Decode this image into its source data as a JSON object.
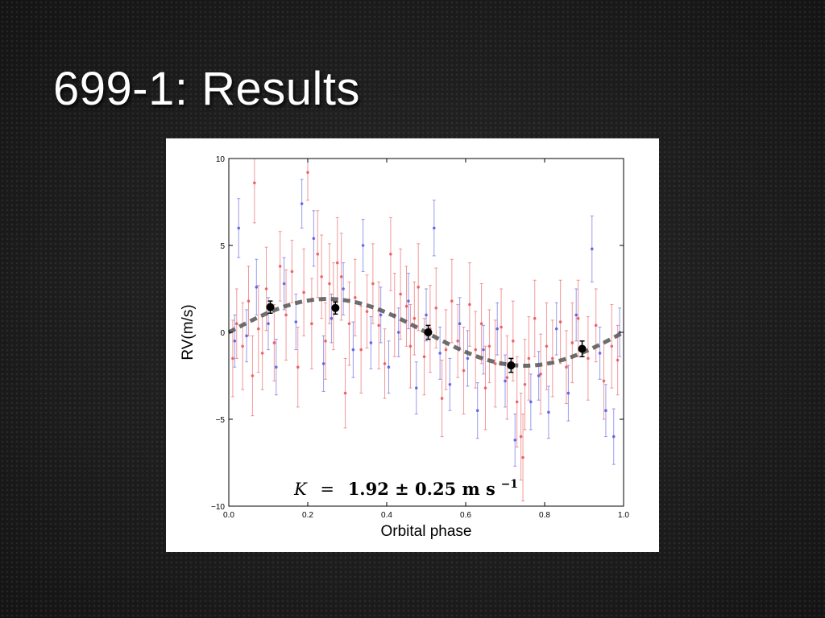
{
  "slide": {
    "title": "699-1: Results"
  },
  "chart_data": {
    "type": "scatter",
    "title": "",
    "xlabel": "Orbital phase",
    "ylabel": "RV(m/s)",
    "xlim": [
      0.0,
      1.0
    ],
    "ylim": [
      -10,
      10
    ],
    "x_ticks": [
      "0.0",
      "0.2",
      "0.4",
      "0.6",
      "0.8",
      "1.0"
    ],
    "x_tick_values": [
      0.0,
      0.2,
      0.4,
      0.6,
      0.8,
      1.0
    ],
    "y_ticks": [
      "10",
      "5",
      "0",
      "−5",
      "−10"
    ],
    "y_tick_values": [
      10,
      5,
      0,
      -5,
      -10
    ],
    "grid": false,
    "annotation": {
      "text_var": "K",
      "text_eq": "=",
      "text_value": "1.92 ± 0.25 m s",
      "text_sup": "−1"
    },
    "colors": {
      "red_series": "#e8484d",
      "blue_series": "#4a4de0",
      "binned": "#000000",
      "model": "#555555"
    },
    "model_curve": {
      "style": "dashed",
      "semi_amplitude": 1.92,
      "phase_of_max": 0.25
    },
    "binned": [
      {
        "x": 0.105,
        "y": 1.45,
        "err": 0.35
      },
      {
        "x": 0.27,
        "y": 1.4,
        "err": 0.35
      },
      {
        "x": 0.505,
        "y": 0.0,
        "err": 0.4
      },
      {
        "x": 0.715,
        "y": -1.9,
        "err": 0.4
      },
      {
        "x": 0.895,
        "y": -0.95,
        "err": 0.45
      }
    ],
    "series": [
      {
        "color": "red",
        "points": [
          {
            "x": 0.01,
            "y": -1.5,
            "err": 2.2
          },
          {
            "x": 0.02,
            "y": 0.5,
            "err": 2.0
          },
          {
            "x": 0.035,
            "y": -0.8,
            "err": 2.5
          },
          {
            "x": 0.05,
            "y": 1.8,
            "err": 2.0
          },
          {
            "x": 0.06,
            "y": -2.5,
            "err": 2.3
          },
          {
            "x": 0.065,
            "y": 8.6,
            "err": 2.3
          },
          {
            "x": 0.075,
            "y": 0.2,
            "err": 2.5
          },
          {
            "x": 0.085,
            "y": -1.2,
            "err": 2.1
          },
          {
            "x": 0.095,
            "y": 2.5,
            "err": 2.4
          },
          {
            "x": 0.115,
            "y": -0.6,
            "err": 2.2
          },
          {
            "x": 0.13,
            "y": 3.8,
            "err": 2.0
          },
          {
            "x": 0.145,
            "y": 1.0,
            "err": 2.6
          },
          {
            "x": 0.16,
            "y": 3.5,
            "err": 1.8
          },
          {
            "x": 0.175,
            "y": -2.0,
            "err": 2.3
          },
          {
            "x": 0.19,
            "y": 2.3,
            "err": 2.5
          },
          {
            "x": 0.2,
            "y": 9.2,
            "err": 1.6
          },
          {
            "x": 0.21,
            "y": 0.5,
            "err": 2.6
          },
          {
            "x": 0.225,
            "y": 4.5,
            "err": 2.5
          },
          {
            "x": 0.235,
            "y": 3.2,
            "err": 2.4
          },
          {
            "x": 0.245,
            "y": -0.5,
            "err": 2.2
          },
          {
            "x": 0.255,
            "y": 2.8,
            "err": 2.3
          },
          {
            "x": 0.265,
            "y": 1.5,
            "err": 2.5
          },
          {
            "x": 0.275,
            "y": 4.0,
            "err": 2.6
          },
          {
            "x": 0.285,
            "y": 3.2,
            "err": 2.5
          },
          {
            "x": 0.295,
            "y": -3.5,
            "err": 2.0
          },
          {
            "x": 0.305,
            "y": 0.5,
            "err": 2.4
          },
          {
            "x": 0.32,
            "y": 2.0,
            "err": 2.2
          },
          {
            "x": 0.335,
            "y": -1.0,
            "err": 2.5
          },
          {
            "x": 0.35,
            "y": 1.2,
            "err": 2.1
          },
          {
            "x": 0.365,
            "y": 2.8,
            "err": 2.3
          },
          {
            "x": 0.38,
            "y": 0.4,
            "err": 2.5
          },
          {
            "x": 0.395,
            "y": -1.8,
            "err": 2.0
          },
          {
            "x": 0.41,
            "y": 4.5,
            "err": 2.1
          },
          {
            "x": 0.42,
            "y": 1.0,
            "err": 2.4
          },
          {
            "x": 0.435,
            "y": 2.2,
            "err": 2.6
          },
          {
            "x": 0.45,
            "y": 1.5,
            "err": 2.3
          },
          {
            "x": 0.46,
            "y": -0.8,
            "err": 2.4
          },
          {
            "x": 0.47,
            "y": 0.8,
            "err": 2.1
          },
          {
            "x": 0.48,
            "y": 2.6,
            "err": 2.5
          },
          {
            "x": 0.495,
            "y": -1.4,
            "err": 2.2
          },
          {
            "x": 0.51,
            "y": 0.2,
            "err": 2.5
          },
          {
            "x": 0.525,
            "y": 1.4,
            "err": 2.3
          },
          {
            "x": 0.54,
            "y": -3.8,
            "err": 2.2
          },
          {
            "x": 0.55,
            "y": -1.0,
            "err": 2.3
          },
          {
            "x": 0.565,
            "y": 1.8,
            "err": 2.4
          },
          {
            "x": 0.58,
            "y": -0.5,
            "err": 2.1
          },
          {
            "x": 0.595,
            "y": -2.2,
            "err": 2.5
          },
          {
            "x": 0.61,
            "y": 1.6,
            "err": 2.4
          },
          {
            "x": 0.625,
            "y": -1.0,
            "err": 2.2
          },
          {
            "x": 0.64,
            "y": 0.5,
            "err": 2.3
          },
          {
            "x": 0.65,
            "y": -3.2,
            "err": 2.4
          },
          {
            "x": 0.66,
            "y": -0.8,
            "err": 2.1
          },
          {
            "x": 0.675,
            "y": -1.8,
            "err": 2.5
          },
          {
            "x": 0.69,
            "y": 0.3,
            "err": 2.2
          },
          {
            "x": 0.705,
            "y": -2.6,
            "err": 2.4
          },
          {
            "x": 0.72,
            "y": -0.5,
            "err": 2.3
          },
          {
            "x": 0.73,
            "y": -4.0,
            "err": 2.6
          },
          {
            "x": 0.74,
            "y": -6.0,
            "err": 2.5
          },
          {
            "x": 0.745,
            "y": -7.2,
            "err": 2.5
          },
          {
            "x": 0.75,
            "y": -3.0,
            "err": 2.6
          },
          {
            "x": 0.76,
            "y": -1.5,
            "err": 2.4
          },
          {
            "x": 0.775,
            "y": 0.8,
            "err": 2.2
          },
          {
            "x": 0.79,
            "y": -2.4,
            "err": 2.3
          },
          {
            "x": 0.805,
            "y": -0.8,
            "err": 2.5
          },
          {
            "x": 0.82,
            "y": -1.5,
            "err": 2.2
          },
          {
            "x": 0.84,
            "y": 0.6,
            "err": 2.4
          },
          {
            "x": 0.855,
            "y": -2.0,
            "err": 2.1
          },
          {
            "x": 0.87,
            "y": -0.6,
            "err": 2.3
          },
          {
            "x": 0.885,
            "y": 0.8,
            "err": 2.2
          },
          {
            "x": 0.91,
            "y": -1.5,
            "err": 2.4
          },
          {
            "x": 0.93,
            "y": 0.4,
            "err": 2.1
          },
          {
            "x": 0.95,
            "y": -2.8,
            "err": 2.2
          },
          {
            "x": 0.97,
            "y": -0.8,
            "err": 2.4
          },
          {
            "x": 0.985,
            "y": -1.6,
            "err": 2.0
          }
        ]
      },
      {
        "color": "blue",
        "points": [
          {
            "x": 0.015,
            "y": -0.5,
            "err": 1.5
          },
          {
            "x": 0.025,
            "y": 6.0,
            "err": 1.7
          },
          {
            "x": 0.045,
            "y": -0.2,
            "err": 1.5
          },
          {
            "x": 0.07,
            "y": 2.6,
            "err": 1.6
          },
          {
            "x": 0.1,
            "y": 0.5,
            "err": 1.5
          },
          {
            "x": 0.12,
            "y": -2.0,
            "err": 1.6
          },
          {
            "x": 0.14,
            "y": 2.8,
            "err": 1.5
          },
          {
            "x": 0.17,
            "y": 0.6,
            "err": 1.6
          },
          {
            "x": 0.185,
            "y": 7.4,
            "err": 1.4
          },
          {
            "x": 0.215,
            "y": 5.4,
            "err": 1.6
          },
          {
            "x": 0.24,
            "y": -1.8,
            "err": 1.6
          },
          {
            "x": 0.26,
            "y": 0.8,
            "err": 1.4
          },
          {
            "x": 0.29,
            "y": 2.5,
            "err": 1.5
          },
          {
            "x": 0.315,
            "y": -1.0,
            "err": 1.6
          },
          {
            "x": 0.34,
            "y": 5.0,
            "err": 1.5
          },
          {
            "x": 0.36,
            "y": -0.6,
            "err": 1.5
          },
          {
            "x": 0.385,
            "y": 1.0,
            "err": 1.6
          },
          {
            "x": 0.405,
            "y": -2.0,
            "err": 1.5
          },
          {
            "x": 0.43,
            "y": 0.0,
            "err": 1.4
          },
          {
            "x": 0.455,
            "y": 1.8,
            "err": 1.6
          },
          {
            "x": 0.475,
            "y": -3.2,
            "err": 1.5
          },
          {
            "x": 0.5,
            "y": 1.0,
            "err": 1.5
          },
          {
            "x": 0.52,
            "y": 6.0,
            "err": 1.6
          },
          {
            "x": 0.535,
            "y": -1.2,
            "err": 1.5
          },
          {
            "x": 0.56,
            "y": -3.0,
            "err": 1.5
          },
          {
            "x": 0.585,
            "y": 0.5,
            "err": 1.5
          },
          {
            "x": 0.605,
            "y": -1.5,
            "err": 1.6
          },
          {
            "x": 0.63,
            "y": -4.5,
            "err": 1.6
          },
          {
            "x": 0.645,
            "y": -1.0,
            "err": 1.4
          },
          {
            "x": 0.68,
            "y": 0.2,
            "err": 1.5
          },
          {
            "x": 0.7,
            "y": -2.8,
            "err": 1.5
          },
          {
            "x": 0.725,
            "y": -6.2,
            "err": 1.5
          },
          {
            "x": 0.765,
            "y": -4.0,
            "err": 1.6
          },
          {
            "x": 0.785,
            "y": -2.5,
            "err": 1.4
          },
          {
            "x": 0.81,
            "y": -4.6,
            "err": 1.5
          },
          {
            "x": 0.83,
            "y": 0.2,
            "err": 1.5
          },
          {
            "x": 0.86,
            "y": -3.5,
            "err": 1.6
          },
          {
            "x": 0.88,
            "y": 1.0,
            "err": 1.5
          },
          {
            "x": 0.92,
            "y": 4.8,
            "err": 1.9
          },
          {
            "x": 0.94,
            "y": -1.2,
            "err": 1.5
          },
          {
            "x": 0.955,
            "y": -4.5,
            "err": 1.5
          },
          {
            "x": 0.975,
            "y": -6.0,
            "err": 1.6
          },
          {
            "x": 0.99,
            "y": 0.0,
            "err": 1.4
          }
        ]
      }
    ]
  }
}
